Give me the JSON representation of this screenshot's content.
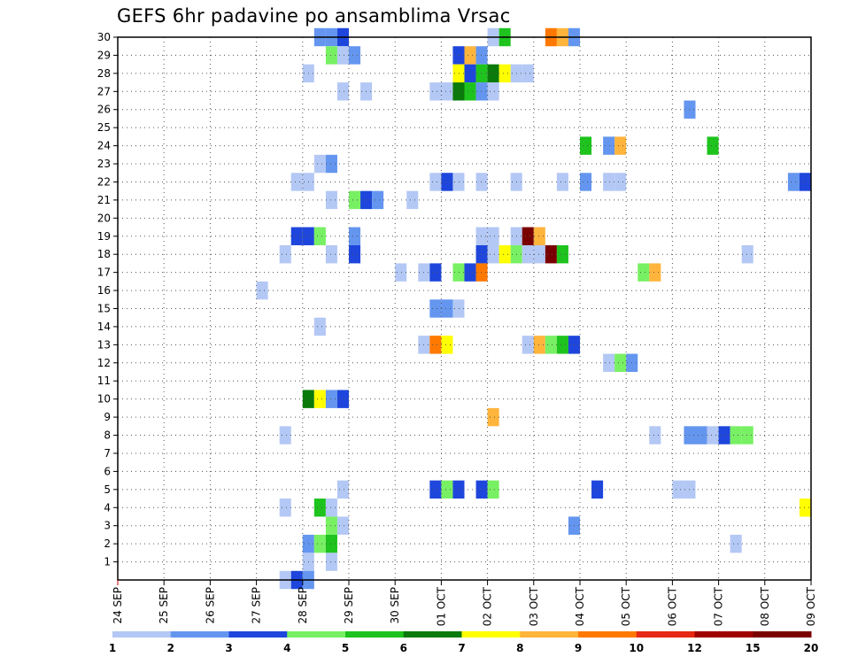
{
  "chart_data": {
    "type": "heatmap",
    "title": "GEFS 6hr padavine po ansamblima Vrsac",
    "xlabel": "",
    "ylabel": "",
    "members": [
      1,
      2,
      3,
      4,
      5,
      6,
      7,
      8,
      9,
      10,
      11,
      12,
      13,
      14,
      15,
      16,
      17,
      18,
      19,
      20,
      21,
      22,
      23,
      24,
      25,
      26,
      27,
      28,
      29,
      30
    ],
    "x_tick_labels": [
      "24 SEP",
      "25 SEP",
      "26 SEP",
      "27 SEP",
      "28 SEP",
      "29 SEP",
      "30 SEP",
      "01 OCT",
      "02 OCT",
      "03 OCT",
      "04 OCT",
      "05 OCT",
      "06 OCT",
      "07 OCT",
      "08 OCT",
      "09 OCT"
    ],
    "x_range_days": [
      0,
      15
    ],
    "time_step_hours": 6,
    "colorbar": {
      "labels": [
        "1",
        "2",
        "3",
        "4",
        "5",
        "6",
        "7",
        "8",
        "9",
        "10",
        "12",
        "15",
        "20"
      ],
      "colors": [
        "#b4c8f5",
        "#6496f0",
        "#1e46dc",
        "#78f064",
        "#1ec31e",
        "#0a7a0a",
        "#ffff00",
        "#ffb43c",
        "#ff7800",
        "#e62814",
        "#a00000",
        "#7a0000"
      ]
    },
    "grid": "dotted",
    "cells": [
      {
        "member": 30,
        "start": "28 SEP 06",
        "levels": [
          2,
          2,
          3
        ]
      },
      {
        "member": 30,
        "start": "02 OCT 00",
        "levels": [
          1,
          5
        ]
      },
      {
        "member": 30,
        "start": "03 OCT 06",
        "levels": [
          9,
          8,
          2
        ]
      },
      {
        "member": 29,
        "start": "28 SEP 12",
        "levels": [
          4,
          1,
          2
        ]
      },
      {
        "member": 29,
        "start": "01 OCT 06",
        "levels": [
          3,
          8,
          2
        ]
      },
      {
        "member": 28,
        "start": "28 SEP 00",
        "levels": [
          1
        ]
      },
      {
        "member": 28,
        "start": "01 OCT 06",
        "levels": [
          7,
          3,
          5,
          6,
          7,
          1
        ]
      },
      {
        "member": 28,
        "start": "02 OCT 18",
        "levels": [
          1
        ]
      },
      {
        "member": 27,
        "start": "28 SEP 18",
        "levels": [
          1
        ]
      },
      {
        "member": 27,
        "start": "29 SEP 06",
        "levels": [
          1
        ]
      },
      {
        "member": 27,
        "start": "30 SEP 18",
        "levels": [
          1,
          1,
          6,
          5,
          2,
          1
        ]
      },
      {
        "member": 26,
        "start": "06 OCT 06",
        "levels": [
          2
        ]
      },
      {
        "member": 24,
        "start": "04 OCT 00",
        "levels": [
          5
        ]
      },
      {
        "member": 24,
        "start": "04 OCT 12",
        "levels": [
          2,
          8
        ]
      },
      {
        "member": 24,
        "start": "06 OCT 18",
        "levels": [
          5
        ]
      },
      {
        "member": 23,
        "start": "28 SEP 06",
        "levels": [
          1,
          2
        ]
      },
      {
        "member": 22,
        "start": "27 SEP 18",
        "levels": [
          1,
          1
        ]
      },
      {
        "member": 22,
        "start": "30 SEP 18",
        "levels": [
          1,
          3,
          1
        ]
      },
      {
        "member": 22,
        "start": "01 OCT 18",
        "levels": [
          1
        ]
      },
      {
        "member": 22,
        "start": "02 OCT 12",
        "levels": [
          1
        ]
      },
      {
        "member": 22,
        "start": "03 OCT 12",
        "levels": [
          1
        ]
      },
      {
        "member": 22,
        "start": "04 OCT 00",
        "levels": [
          2
        ]
      },
      {
        "member": 22,
        "start": "04 OCT 12",
        "levels": [
          1,
          1
        ]
      },
      {
        "member": 22,
        "start": "08 OCT 12",
        "levels": [
          2,
          3
        ]
      },
      {
        "member": 21,
        "start": "28 SEP 12",
        "levels": [
          1
        ]
      },
      {
        "member": 21,
        "start": "29 SEP 00",
        "levels": [
          4,
          3,
          2
        ]
      },
      {
        "member": 21,
        "start": "30 SEP 06",
        "levels": [
          1
        ]
      },
      {
        "member": 19,
        "start": "27 SEP 18",
        "levels": [
          3,
          3,
          4
        ]
      },
      {
        "member": 19,
        "start": "29 SEP 00",
        "levels": [
          2
        ]
      },
      {
        "member": 19,
        "start": "01 OCT 18",
        "levels": [
          1,
          1
        ]
      },
      {
        "member": 19,
        "start": "02 OCT 12",
        "levels": [
          1,
          12,
          8
        ]
      },
      {
        "member": 18,
        "start": "27 SEP 12",
        "levels": [
          1
        ]
      },
      {
        "member": 18,
        "start": "28 SEP 12",
        "levels": [
          1
        ]
      },
      {
        "member": 18,
        "start": "28 SEP 00",
        "levels": []
      },
      {
        "member": 18,
        "start": "29 SEP 00",
        "levels": [
          3
        ]
      },
      {
        "member": 18,
        "start": "01 OCT 18",
        "levels": [
          3,
          1,
          7,
          4,
          1,
          1,
          12,
          5
        ]
      },
      {
        "member": 18,
        "start": "07 OCT 12",
        "levels": [
          1
        ]
      },
      {
        "member": 17,
        "start": "30 SEP 00",
        "levels": [
          1
        ]
      },
      {
        "member": 17,
        "start": "30 SEP 12",
        "levels": [
          1,
          3
        ]
      },
      {
        "member": 17,
        "start": "01 OCT 06",
        "levels": [
          4,
          3,
          9
        ]
      },
      {
        "member": 17,
        "start": "05 OCT 06",
        "levels": [
          4,
          8
        ]
      },
      {
        "member": 16,
        "start": "27 SEP 00",
        "levels": [
          1
        ]
      },
      {
        "member": 15,
        "start": "30 SEP 18",
        "levels": [
          2,
          2,
          1
        ]
      },
      {
        "member": 14,
        "start": "28 SEP 06",
        "levels": [
          1
        ]
      },
      {
        "member": 13,
        "start": "30 SEP 12",
        "levels": [
          1,
          9,
          7
        ]
      },
      {
        "member": 13,
        "start": "02 OCT 18",
        "levels": [
          1,
          8,
          4,
          5,
          3
        ]
      },
      {
        "member": 12,
        "start": "04 OCT 12",
        "levels": [
          1,
          4,
          2
        ]
      },
      {
        "member": 10,
        "start": "28 SEP 00",
        "levels": [
          6,
          7,
          2,
          3
        ]
      },
      {
        "member": 9,
        "start": "02 OCT 00",
        "levels": [
          8
        ]
      },
      {
        "member": 8,
        "start": "27 SEP 12",
        "levels": [
          1
        ]
      },
      {
        "member": 8,
        "start": "05 OCT 12",
        "levels": [
          1
        ]
      },
      {
        "member": 8,
        "start": "06 OCT 06",
        "levels": [
          2,
          2,
          1,
          3,
          4,
          4
        ]
      },
      {
        "member": 5,
        "start": "28 SEP 18",
        "levels": [
          1
        ]
      },
      {
        "member": 5,
        "start": "30 SEP 18",
        "levels": [
          3,
          4,
          3
        ]
      },
      {
        "member": 5,
        "start": "01 OCT 18",
        "levels": [
          3,
          4
        ]
      },
      {
        "member": 5,
        "start": "04 OCT 06",
        "levels": [
          3
        ]
      },
      {
        "member": 5,
        "start": "06 OCT 00",
        "levels": [
          1,
          1
        ]
      },
      {
        "member": 4,
        "start": "27 SEP 12",
        "levels": [
          1
        ]
      },
      {
        "member": 4,
        "start": "28 SEP 06",
        "levels": [
          5,
          1
        ]
      },
      {
        "member": 4,
        "start": "08 OCT 18",
        "levels": [
          7
        ]
      },
      {
        "member": 3,
        "start": "28 SEP 12",
        "levels": [
          4,
          1
        ]
      },
      {
        "member": 3,
        "start": "03 OCT 18",
        "levels": [
          2
        ]
      },
      {
        "member": 2,
        "start": "28 SEP 00",
        "levels": [
          2,
          4,
          5
        ]
      },
      {
        "member": 2,
        "start": "07 OCT 06",
        "levels": [
          1
        ]
      },
      {
        "member": 1,
        "start": "28 SEP 00",
        "levels": [
          1
        ]
      },
      {
        "member": 1,
        "start": "28 SEP 12",
        "levels": [
          1
        ]
      },
      {
        "member": 0,
        "start": "27 SEP 12",
        "levels": [
          1,
          3,
          2
        ]
      }
    ]
  }
}
